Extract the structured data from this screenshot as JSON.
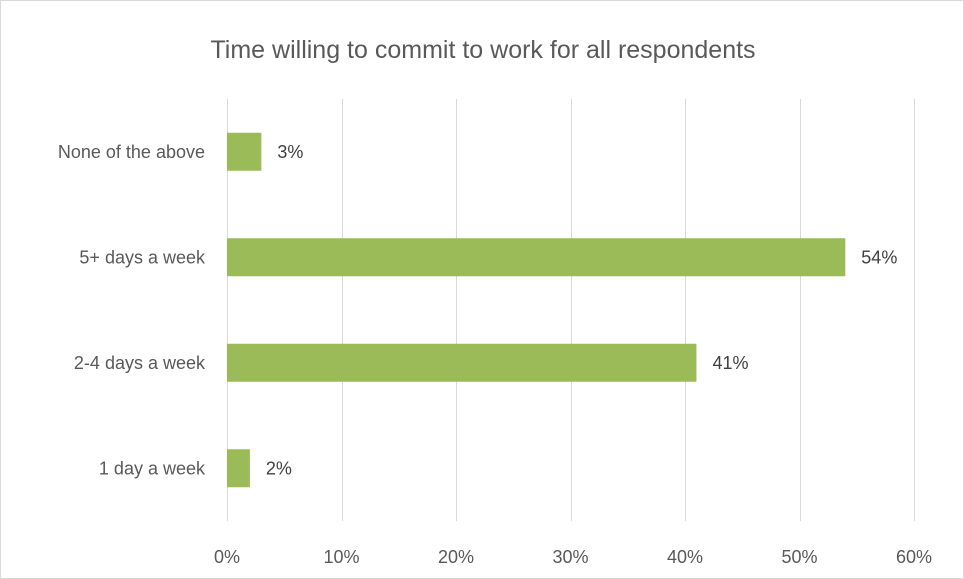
{
  "chart_data": {
    "type": "bar",
    "orientation": "horizontal",
    "title": "Time willing to commit to work for all respondents",
    "categories": [
      "None of the above",
      "5+ days a week",
      "2-4 days a week",
      "1 day a week"
    ],
    "values": [
      3,
      54,
      41,
      2
    ],
    "data_labels": [
      "3%",
      "54%",
      "41%",
      "2%"
    ],
    "xlim": [
      0,
      60
    ],
    "x_ticks": [
      0,
      10,
      20,
      30,
      40,
      50,
      60
    ],
    "x_tick_labels": [
      "0%",
      "10%",
      "20%",
      "30%",
      "40%",
      "50%",
      "60%"
    ],
    "xlabel": "",
    "ylabel": "",
    "grid": "vertical",
    "legend": "none",
    "bar_color": "#9bbb59"
  }
}
